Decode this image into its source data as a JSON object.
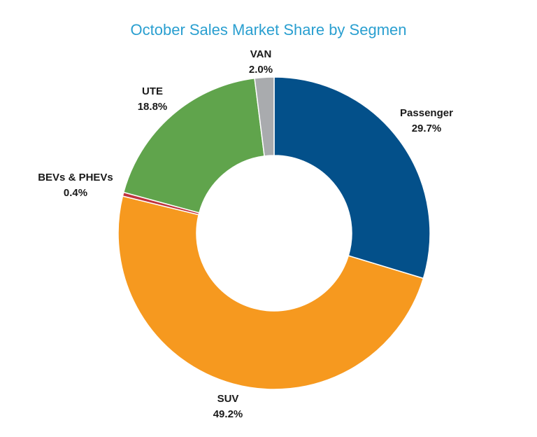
{
  "chart_data": {
    "type": "pie",
    "variant": "donut",
    "title": "October Sales Market Share by Segmen",
    "legend": "none",
    "start_angle_deg": 0,
    "direction": "clockwise",
    "slices": [
      {
        "name": "Passenger",
        "value": 29.7,
        "label": "29.7%",
        "color": "#03508a"
      },
      {
        "name": "SUV",
        "value": 49.2,
        "label": "49.2%",
        "color": "#f6991f"
      },
      {
        "name": "BEVs & PHEVs",
        "value": 0.4,
        "label": "0.4%",
        "color": "#c0343e"
      },
      {
        "name": "UTE",
        "value": 18.8,
        "label": "18.8%",
        "color": "#60a44c"
      },
      {
        "name": "VAN",
        "value": 2.0,
        "label": "2.0%",
        "color": "#a9abae"
      }
    ]
  }
}
